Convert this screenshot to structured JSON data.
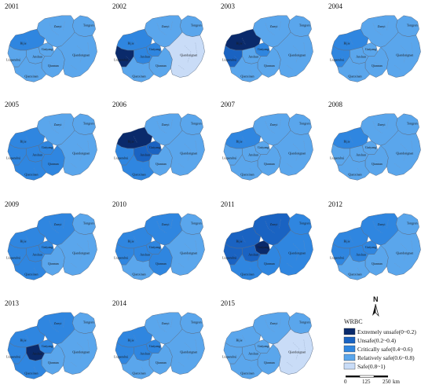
{
  "colors": {
    "c1": "#0a2a6b",
    "c2": "#1a63c2",
    "c3": "#2f86e0",
    "c4": "#5aa6ec",
    "c5": "#c9dcf7"
  },
  "city_labels": {
    "zunyi": "Zunyi",
    "tongren": "Tongren",
    "bijie": "Bijie",
    "guiyang": "Guiyang",
    "liupanshui": "Liupanshui",
    "anshun": "Anshun",
    "qiannan": "Qiannan",
    "qiandongnan": "Qiandongnan",
    "qianxinan": "Qianxinan"
  },
  "maps": [
    {
      "year": "2001",
      "regions": {
        "zunyi": 4,
        "tongren": 4,
        "bijie": 3,
        "guiyang": 4,
        "liupanshui": 4,
        "anshun": 4,
        "qiannan": 4,
        "qiandongnan": 4,
        "qianxinan": 4
      }
    },
    {
      "year": "2002",
      "regions": {
        "zunyi": 4,
        "tongren": 4,
        "bijie": 3,
        "guiyang": 3,
        "liupanshui": 1,
        "anshun": 3,
        "qiannan": 4,
        "qiandongnan": 5,
        "qianxinan": 4
      }
    },
    {
      "year": "2003",
      "regions": {
        "zunyi": 4,
        "tongren": 4,
        "bijie": 1,
        "guiyang": 3,
        "liupanshui": 2,
        "anshun": 4,
        "qiannan": 4,
        "qiandongnan": 4,
        "qianxinan": 4
      }
    },
    {
      "year": "2004",
      "regions": {
        "zunyi": 4,
        "tongren": 4,
        "bijie": 3,
        "guiyang": 4,
        "liupanshui": 3,
        "anshun": 4,
        "qiannan": 4,
        "qiandongnan": 4,
        "qianxinan": 4
      }
    },
    {
      "year": "2005",
      "regions": {
        "zunyi": 4,
        "tongren": 4,
        "bijie": 3,
        "guiyang": 3,
        "liupanshui": 3,
        "anshun": 3,
        "qiannan": 3,
        "qiandongnan": 4,
        "qianxinan": 3
      }
    },
    {
      "year": "2006",
      "regions": {
        "zunyi": 4,
        "tongren": 4,
        "bijie": 1,
        "guiyang": 2,
        "liupanshui": 3,
        "anshun": 2,
        "qiannan": 4,
        "qiandongnan": 4,
        "qianxinan": 3
      }
    },
    {
      "year": "2007",
      "regions": {
        "zunyi": 4,
        "tongren": 4,
        "bijie": 3,
        "guiyang": 4,
        "liupanshui": 4,
        "anshun": 4,
        "qiannan": 4,
        "qiandongnan": 4,
        "qianxinan": 4
      }
    },
    {
      "year": "2008",
      "regions": {
        "zunyi": 4,
        "tongren": 4,
        "bijie": 3,
        "guiyang": 4,
        "liupanshui": 4,
        "anshun": 4,
        "qiannan": 4,
        "qiandongnan": 4,
        "qianxinan": 4
      }
    },
    {
      "year": "2009",
      "regions": {
        "zunyi": 3,
        "tongren": 4,
        "bijie": 3,
        "guiyang": 3,
        "liupanshui": 3,
        "anshun": 3,
        "qiannan": 4,
        "qiandongnan": 4,
        "qianxinan": 3
      }
    },
    {
      "year": "2010",
      "regions": {
        "zunyi": 3,
        "tongren": 4,
        "bijie": 3,
        "guiyang": 3,
        "liupanshui": 3,
        "anshun": 3,
        "qiannan": 3,
        "qiandongnan": 4,
        "qianxinan": 4
      }
    },
    {
      "year": "2011",
      "regions": {
        "zunyi": 2,
        "tongren": 3,
        "bijie": 2,
        "guiyang": 1,
        "liupanshui": 2,
        "anshun": 2,
        "qiannan": 3,
        "qiandongnan": 3,
        "qianxinan": 3
      }
    },
    {
      "year": "2012",
      "regions": {
        "zunyi": 3,
        "tongren": 4,
        "bijie": 3,
        "guiyang": 3,
        "liupanshui": 3,
        "anshun": 3,
        "qiannan": 4,
        "qiandongnan": 4,
        "qianxinan": 4
      }
    },
    {
      "year": "2013",
      "regions": {
        "zunyi": 3,
        "tongren": 4,
        "bijie": 3,
        "guiyang": 3,
        "liupanshui": 3,
        "anshun": 1,
        "qiannan": 4,
        "qiandongnan": 4,
        "qianxinan": 3
      }
    },
    {
      "year": "2014",
      "regions": {
        "zunyi": 4,
        "tongren": 4,
        "bijie": 3,
        "guiyang": 3,
        "liupanshui": 3,
        "anshun": 3,
        "qiannan": 4,
        "qiandongnan": 4,
        "qianxinan": 4
      }
    },
    {
      "year": "2015",
      "regions": {
        "zunyi": 4,
        "tongren": 4,
        "bijie": 4,
        "guiyang": 4,
        "liupanshui": 4,
        "anshun": 4,
        "qiannan": 4,
        "qiandongnan": 5,
        "qianxinan": 4
      }
    }
  ],
  "legend": {
    "title": "WRBC",
    "items": [
      {
        "class": 1,
        "label": "Extremely unsafe(0~0.2)"
      },
      {
        "class": 2,
        "label": "Unsafe(0.2~0.4)"
      },
      {
        "class": 3,
        "label": "Critically safe(0.4~0.6)"
      },
      {
        "class": 4,
        "label": "Relatively safe(0.6~0.8)"
      },
      {
        "class": 5,
        "label": "Safe(0.8~1)"
      }
    ]
  },
  "north_arrow": {
    "label": "N"
  },
  "scale_bar": {
    "ticks": [
      "0",
      "125",
      "250"
    ],
    "unit": "km"
  }
}
